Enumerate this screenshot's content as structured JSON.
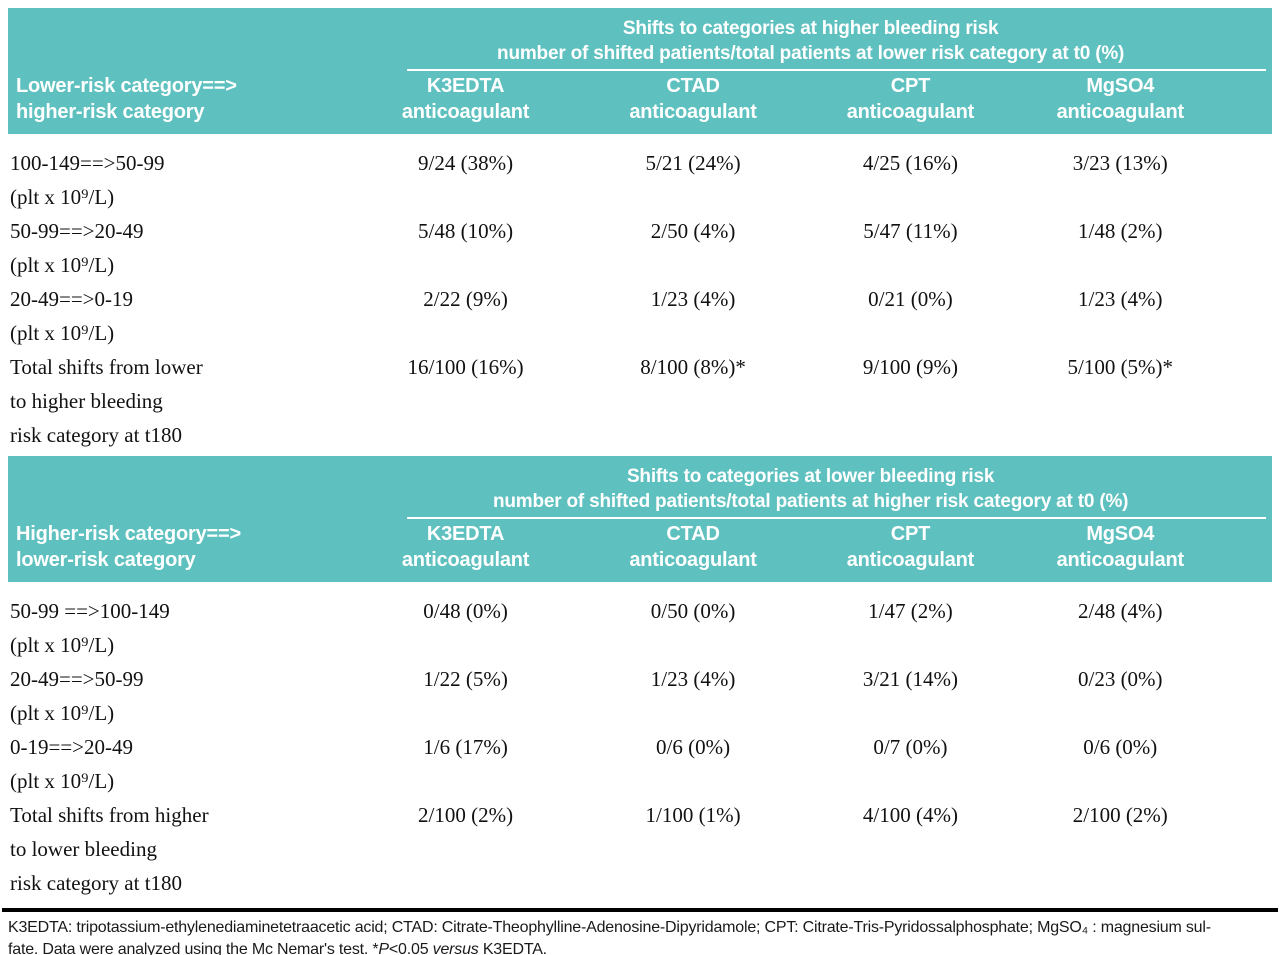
{
  "colors": {
    "teal": "#5ec1bf",
    "text": "#111111",
    "header_text": "#ffffff"
  },
  "tables": [
    {
      "banner": {
        "title_line1": "Shifts to categories at higher bleeding risk",
        "title_line2": "number of shifted patients/total patients at lower risk category at t0 (%)"
      },
      "stub": {
        "line1": "Lower-risk category==>",
        "line2": "higher-risk category"
      },
      "columns": [
        {
          "name": "K3EDTA",
          "sub": "anticoagulant"
        },
        {
          "name": "CTAD",
          "sub": "anticoagulant"
        },
        {
          "name": "CPT",
          "sub": "anticoagulant"
        },
        {
          "name": "MgSO4",
          "sub": "anticoagulant"
        }
      ],
      "rows": [
        {
          "labels": [
            "100-149==>50-99",
            "(plt x 10⁹/L)"
          ],
          "values": [
            "9/24 (38%)",
            "5/21 (24%)",
            "4/25 (16%)",
            "3/23 (13%)"
          ]
        },
        {
          "labels": [
            "50-99==>20-49",
            "(plt x 10⁹/L)"
          ],
          "values": [
            "5/48 (10%)",
            "2/50 (4%)",
            "5/47 (11%)",
            "1/48 (2%)"
          ]
        },
        {
          "labels": [
            "20-49==>0-19",
            "(plt x 10⁹/L)"
          ],
          "values": [
            "2/22 (9%)",
            "1/23 (4%)",
            "0/21 (0%)",
            "1/23 (4%)"
          ]
        },
        {
          "labels": [
            "Total shifts from lower",
            "to higher bleeding",
            "risk category at t180"
          ],
          "values": [
            "16/100 (16%)",
            "8/100 (8%)*",
            "9/100 (9%)",
            "5/100 (5%)*"
          ]
        }
      ]
    },
    {
      "banner": {
        "title_line1": "Shifts to categories at lower bleeding risk",
        "title_line2": "number of shifted patients/total patients at higher risk category at t0 (%)"
      },
      "stub": {
        "line1": "Higher-risk category==>",
        "line2": "lower-risk category"
      },
      "columns": [
        {
          "name": "K3EDTA",
          "sub": "anticoagulant"
        },
        {
          "name": "CTAD",
          "sub": "anticoagulant"
        },
        {
          "name": "CPT",
          "sub": "anticoagulant"
        },
        {
          "name": "MgSO4",
          "sub": "anticoagulant"
        }
      ],
      "rows": [
        {
          "labels": [
            "50-99 ==>100-149",
            "(plt x 10⁹/L)"
          ],
          "values": [
            "0/48 (0%)",
            "0/50 (0%)",
            "1/47 (2%)",
            "2/48 (4%)"
          ]
        },
        {
          "labels": [
            "20-49==>50-99",
            "(plt x 10⁹/L)"
          ],
          "values": [
            "1/22 (5%)",
            "1/23 (4%)",
            "3/21 (14%)",
            "0/23 (0%)"
          ]
        },
        {
          "labels": [
            "0-19==>20-49",
            "(plt x 10⁹/L)"
          ],
          "values": [
            "1/6 (17%)",
            "0/6 (0%)",
            "0/7 (0%)",
            "0/6 (0%)"
          ]
        },
        {
          "labels": [
            "Total shifts from higher",
            "to lower bleeding",
            "risk category at t180"
          ],
          "values": [
            "2/100 (2%)",
            "1/100 (1%)",
            "4/100 (4%)",
            "2/100 (2%)"
          ]
        }
      ]
    }
  ],
  "footnote": {
    "line1": "K3EDTA: tripotassium-ethylenediaminetetraacetic acid; CTAD: Citrate-Theophylline-Adenosine-Dipyridamole; CPT: Citrate-Tris-Pyridossalphosphate; MgSO₄ : magnesium sul-",
    "line2_pre": "fate. Data were analyzed using the Mc Nemar's test. *",
    "line2_italic1": "P",
    "line2_mid": "<0.05 ",
    "line2_italic2": "versus",
    "line2_end": " K3EDTA."
  }
}
